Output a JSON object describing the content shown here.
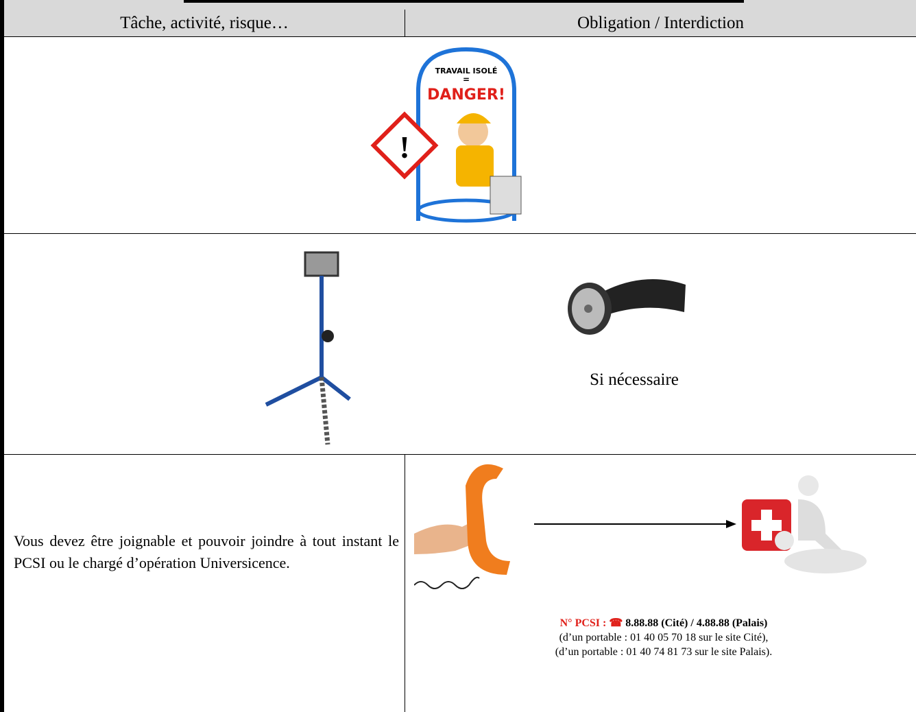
{
  "table": {
    "header": [
      "Tâche, activité, risque…",
      "Obligation / Interdiction"
    ]
  },
  "poster": {
    "line1": "TRAVAIL ISOLÉ",
    "line2": "=",
    "line3": "DANGER!"
  },
  "lamp_row": {
    "caption": "Si nécessaire"
  },
  "contact_row": {
    "instruction": "Vous devez être joignable et pouvoir joindre à tout instant le PCSI ou le chargé d’opération Universicence.",
    "pcsi_label": "N° PCSI :",
    "phone_icon": "☎",
    "pcsi_numbers": "8.88.88 (Cité) / 4.88.88 (Palais)",
    "mobile_cite": "(d’un portable : 01 40 05 70 18 sur le site Cité),",
    "mobile_palais": "(d’un portable : 01 40 74 81 73 sur le site Palais)."
  }
}
